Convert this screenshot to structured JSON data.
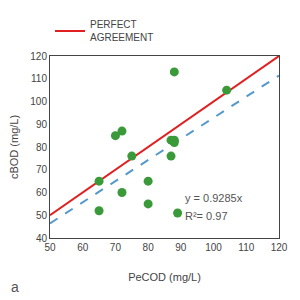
{
  "chart_data": {
    "type": "scatter",
    "xlabel": "PeCOD (mg/L)",
    "ylabel": "cBOD (mg/L)",
    "annotations": [
      "y = 0.9285x",
      "R²= 0.97",
      "a"
    ],
    "series": [
      {
        "name": "PERFECT AGREEMENT",
        "type": "line",
        "color": "#e02020",
        "line_style": "solid",
        "x": [
          50,
          120
        ],
        "values": [
          50,
          120
        ]
      },
      {
        "type": "line",
        "color": "#5599cc",
        "line_style": "dashed",
        "x": [
          50,
          120
        ],
        "values": [
          46.425,
          111.42
        ]
      },
      {
        "type": "scatter",
        "color": "#3a9a3a",
        "marker": "circle",
        "x": [
          65,
          65,
          70,
          72,
          72,
          75,
          80,
          80,
          87,
          87,
          88,
          88,
          89,
          104,
          88
        ],
        "values": [
          52,
          65,
          85,
          87,
          60,
          76,
          55,
          65,
          76,
          83,
          83,
          113,
          51,
          105,
          82
        ]
      }
    ],
    "xlim": [
      50,
      120
    ],
    "ylim": [
      40,
      120
    ],
    "xticks": [
      50,
      60,
      70,
      80,
      90,
      100,
      110,
      120
    ],
    "yticks": [
      40,
      50,
      60,
      70,
      80,
      90,
      100,
      110,
      120
    ],
    "grid": false,
    "legend": "top"
  }
}
